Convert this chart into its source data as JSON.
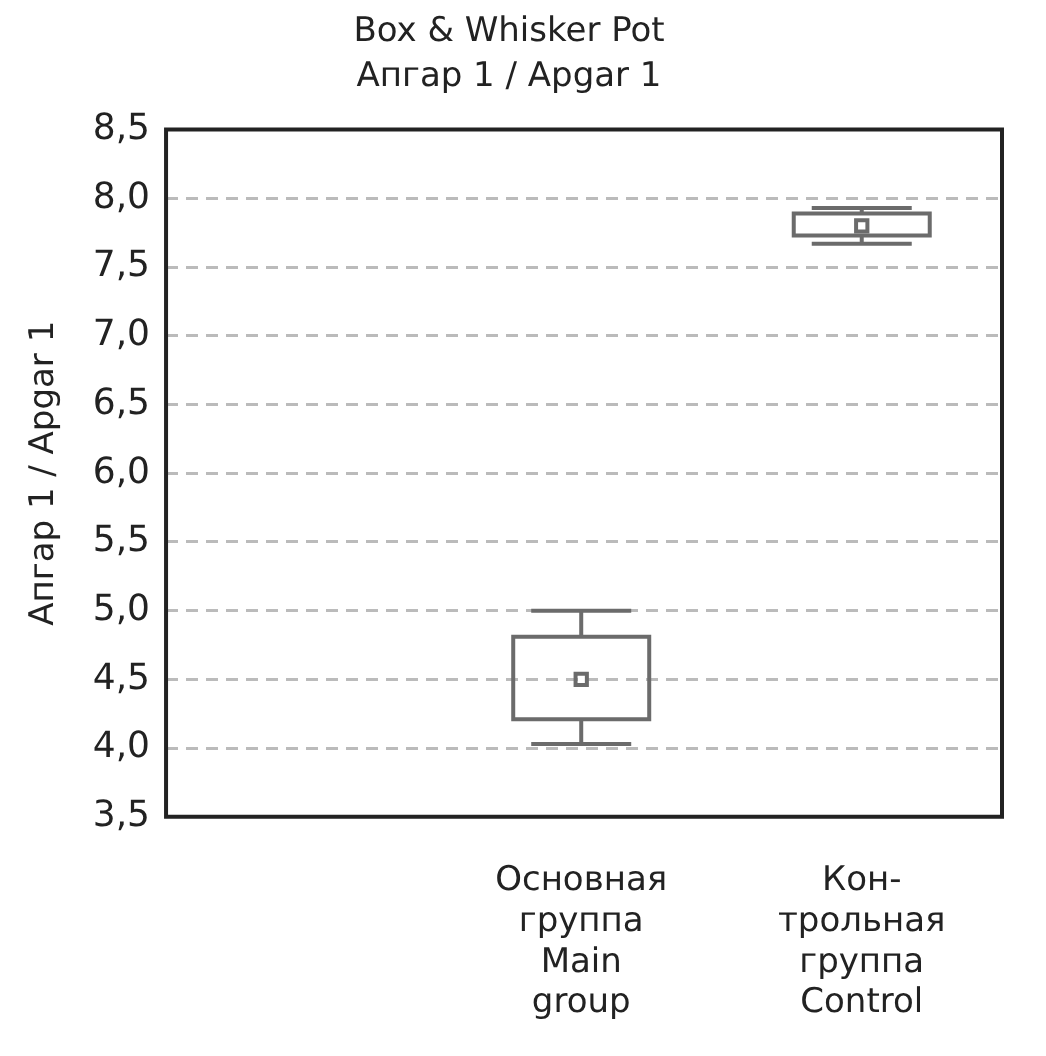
{
  "chart_data": {
    "type": "box",
    "title": "Box & Whisker Pot",
    "subtitle": "Апгар 1 / Apgar 1",
    "ylabel": "Апгар 1 / Apgar 1",
    "categories": [
      "Основная\nгруппа\nMain\ngroup",
      "Кон-\nтрольная\nгруппа\nControl"
    ],
    "boxes": [
      {
        "low": 4.03,
        "q1": 4.21,
        "median": 4.5,
        "q3": 4.81,
        "high": 5.0
      },
      {
        "low": 7.67,
        "q1": 7.73,
        "median": 7.8,
        "q3": 7.89,
        "high": 7.93
      }
    ],
    "color": "#6b6b6b",
    "marker": "square",
    "ylim": [
      3.5,
      8.5
    ],
    "yticks": [
      {
        "value": 3.5,
        "label": "3,5"
      },
      {
        "value": 4.0,
        "label": "4,0"
      },
      {
        "value": 4.5,
        "label": "4,5"
      },
      {
        "value": 5.0,
        "label": "5,0"
      },
      {
        "value": 5.5,
        "label": "5,5"
      },
      {
        "value": 6.0,
        "label": "6,0"
      },
      {
        "value": 6.5,
        "label": "6,5"
      },
      {
        "value": 7.0,
        "label": "7,0"
      },
      {
        "value": 7.5,
        "label": "7,5"
      },
      {
        "value": 8.0,
        "label": "8,0"
      },
      {
        "value": 8.5,
        "label": "8,5"
      }
    ],
    "grid": "y",
    "line_style": "dashed",
    "legend": false
  }
}
